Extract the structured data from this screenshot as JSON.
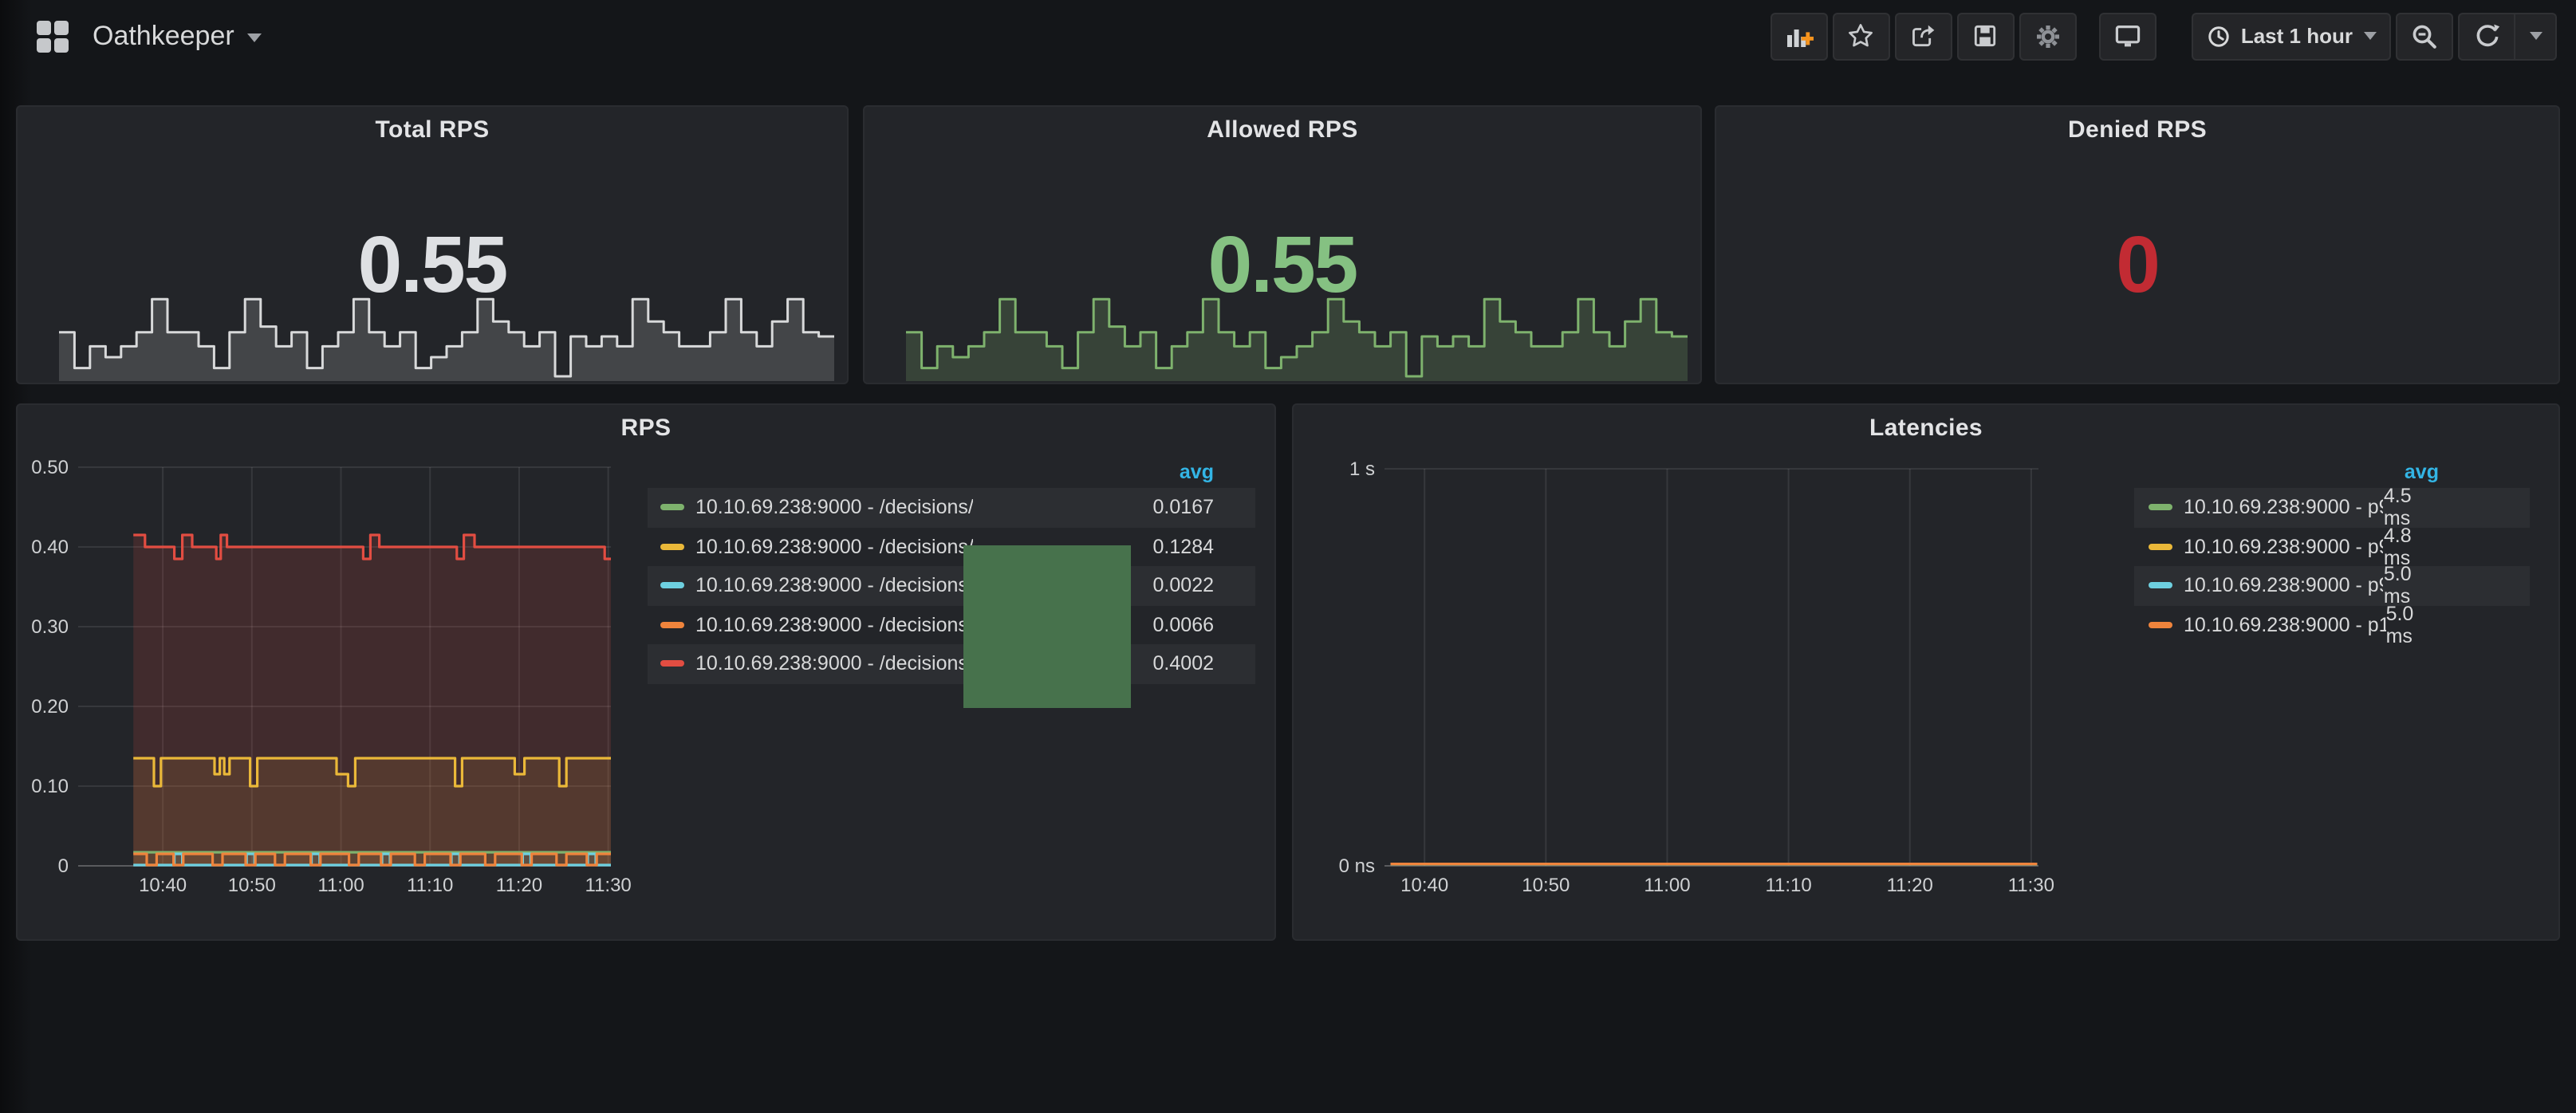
{
  "navbar": {
    "title": "Oathkeeper",
    "time_range": "Last 1 hour",
    "icons": [
      "dashboard-grid",
      "add-panel",
      "star",
      "share",
      "save",
      "settings",
      "tv-kiosk",
      "clock",
      "zoom-out",
      "refresh",
      "caret-down"
    ]
  },
  "stats": [
    {
      "title": "Total RPS",
      "value": "0.55",
      "value_color": "#dee0e3",
      "spark_line": "#d8d9da",
      "spark_fill": "rgba(216,217,218,0.18)",
      "spark": [
        0.55,
        0.12,
        0.38,
        0.25,
        0.38,
        0.55,
        0.95,
        0.55,
        0.55,
        0.38,
        0.12,
        0.55,
        0.95,
        0.62,
        0.38,
        0.55,
        0.12,
        0.38,
        0.55,
        0.95,
        0.55,
        0.38,
        0.55,
        0.12,
        0.25,
        0.38,
        0.55,
        0.95,
        0.68,
        0.55,
        0.38,
        0.55,
        0.02,
        0.5,
        0.38,
        0.5,
        0.38,
        0.95,
        0.68,
        0.55,
        0.38,
        0.38,
        0.55,
        0.95,
        0.55,
        0.38,
        0.68,
        0.95,
        0.55,
        0.5
      ]
    },
    {
      "title": "Allowed RPS",
      "value": "0.55",
      "value_color": "#85c182",
      "spark_line": "#7eb26d",
      "spark_fill": "rgba(126,178,109,0.22)",
      "spark": [
        0.55,
        0.12,
        0.38,
        0.25,
        0.38,
        0.55,
        0.95,
        0.55,
        0.55,
        0.38,
        0.12,
        0.55,
        0.95,
        0.62,
        0.38,
        0.55,
        0.12,
        0.38,
        0.55,
        0.95,
        0.55,
        0.38,
        0.55,
        0.12,
        0.25,
        0.38,
        0.55,
        0.95,
        0.68,
        0.55,
        0.38,
        0.55,
        0.02,
        0.5,
        0.38,
        0.5,
        0.38,
        0.95,
        0.68,
        0.55,
        0.38,
        0.38,
        0.55,
        0.95,
        0.55,
        0.38,
        0.68,
        0.95,
        0.55,
        0.5
      ]
    },
    {
      "title": "Denied RPS",
      "value": "0",
      "value_color": "#c22b33",
      "spark_line": "",
      "spark_fill": "",
      "spark": []
    }
  ],
  "overlay_box": {
    "color": "#47724c"
  },
  "chart_data": [
    {
      "type": "line",
      "title": "RPS",
      "legend_header": "avg",
      "x_units": "minutes after 10:00",
      "x_range": [
        30.5,
        90.3
      ],
      "x_ticks": [
        {
          "t": 40,
          "label": "10:40"
        },
        {
          "t": 50,
          "label": "10:50"
        },
        {
          "t": 60,
          "label": "11:00"
        },
        {
          "t": 70,
          "label": "11:10"
        },
        {
          "t": 80,
          "label": "11:20"
        },
        {
          "t": 90,
          "label": "11:30"
        }
      ],
      "y_max": 0.5,
      "y_ticks": [
        {
          "v": 0,
          "label": "0"
        },
        {
          "v": 0.1,
          "label": "0.10"
        },
        {
          "v": 0.2,
          "label": "0.20"
        },
        {
          "v": 0.3,
          "label": "0.30"
        },
        {
          "v": 0.4,
          "label": "0.40"
        },
        {
          "v": 0.5,
          "label": "0.50"
        }
      ],
      "series": [
        {
          "name": "10.10.69.238:9000 - /decisions/",
          "color": "#7eb26d",
          "avg": "0.0167",
          "fill_opacity": 0.1,
          "points": [
            [
              36.7,
              0.017
            ],
            [
              90.3,
              0.017
            ]
          ]
        },
        {
          "name": "10.10.69.238:9000 - /decisions/",
          "color": "#eab839",
          "avg": "0.1284",
          "fill_opacity": 0.12,
          "points": [
            [
              36.7,
              0.135
            ],
            [
              39,
              0.135
            ],
            [
              39,
              0.1
            ],
            [
              39.8,
              0.1
            ],
            [
              39.8,
              0.135
            ],
            [
              45.8,
              0.135
            ],
            [
              45.8,
              0.115
            ],
            [
              46.4,
              0.115
            ],
            [
              46.4,
              0.135
            ],
            [
              46.9,
              0.135
            ],
            [
              46.9,
              0.115
            ],
            [
              47.5,
              0.115
            ],
            [
              47.5,
              0.135
            ],
            [
              49.8,
              0.135
            ],
            [
              49.8,
              0.1
            ],
            [
              50.6,
              0.1
            ],
            [
              50.6,
              0.135
            ],
            [
              59.5,
              0.135
            ],
            [
              59.5,
              0.115
            ],
            [
              60.8,
              0.115
            ],
            [
              60.8,
              0.1
            ],
            [
              61.6,
              0.1
            ],
            [
              61.6,
              0.135
            ],
            [
              72.8,
              0.135
            ],
            [
              72.8,
              0.1
            ],
            [
              73.6,
              0.1
            ],
            [
              73.6,
              0.135
            ],
            [
              79.5,
              0.135
            ],
            [
              79.5,
              0.115
            ],
            [
              80.6,
              0.115
            ],
            [
              80.6,
              0.135
            ],
            [
              84.5,
              0.135
            ],
            [
              84.5,
              0.1
            ],
            [
              85.3,
              0.1
            ],
            [
              85.3,
              0.135
            ],
            [
              90.3,
              0.135
            ]
          ]
        },
        {
          "name": "10.10.69.238:9000 - /decisions/",
          "color": "#6ed0e0",
          "avg": "0.0022",
          "fill_opacity": 0.1,
          "points": [
            [
              36.7,
              0.001
            ],
            [
              41.3,
              0.001
            ],
            [
              41.3,
              0.015
            ],
            [
              42.2,
              0.015
            ],
            [
              42.2,
              0.001
            ],
            [
              49.4,
              0.001
            ],
            [
              49.4,
              0.015
            ],
            [
              50.3,
              0.015
            ],
            [
              50.3,
              0.001
            ],
            [
              56.7,
              0.001
            ],
            [
              56.7,
              0.015
            ],
            [
              57.6,
              0.015
            ],
            [
              57.6,
              0.001
            ],
            [
              64.6,
              0.001
            ],
            [
              64.6,
              0.015
            ],
            [
              65.5,
              0.015
            ],
            [
              65.5,
              0.001
            ],
            [
              72.4,
              0.001
            ],
            [
              72.4,
              0.015
            ],
            [
              73.3,
              0.015
            ],
            [
              73.3,
              0.001
            ],
            [
              80.4,
              0.001
            ],
            [
              80.4,
              0.015
            ],
            [
              81.3,
              0.015
            ],
            [
              81.3,
              0.001
            ],
            [
              87.7,
              0.001
            ],
            [
              87.7,
              0.015
            ],
            [
              88.6,
              0.015
            ],
            [
              88.6,
              0.001
            ],
            [
              90.3,
              0.001
            ]
          ]
        },
        {
          "name": "10.10.69.238:9000 - /decisions/",
          "color": "#ef843c",
          "avg": "0.0066",
          "fill_opacity": 0.1,
          "points": [
            [
              36.7,
              0.015
            ],
            [
              38.2,
              0.015
            ],
            [
              38.2,
              0.001
            ],
            [
              39.3,
              0.001
            ],
            [
              39.3,
              0.015
            ],
            [
              41.2,
              0.015
            ],
            [
              41.2,
              0.001
            ],
            [
              42.3,
              0.001
            ],
            [
              42.3,
              0.015
            ],
            [
              45.6,
              0.015
            ],
            [
              45.6,
              0.001
            ],
            [
              46.7,
              0.001
            ],
            [
              46.7,
              0.015
            ],
            [
              49.3,
              0.015
            ],
            [
              49.3,
              0.001
            ],
            [
              50.4,
              0.001
            ],
            [
              50.4,
              0.015
            ],
            [
              52.6,
              0.015
            ],
            [
              52.6,
              0.001
            ],
            [
              53.7,
              0.001
            ],
            [
              53.7,
              0.015
            ],
            [
              56.6,
              0.015
            ],
            [
              56.6,
              0.001
            ],
            [
              57.7,
              0.001
            ],
            [
              57.7,
              0.015
            ],
            [
              60.9,
              0.015
            ],
            [
              60.9,
              0.001
            ],
            [
              62.0,
              0.001
            ],
            [
              62.0,
              0.015
            ],
            [
              64.5,
              0.015
            ],
            [
              64.5,
              0.001
            ],
            [
              65.6,
              0.001
            ],
            [
              65.6,
              0.015
            ],
            [
              68.3,
              0.015
            ],
            [
              68.3,
              0.001
            ],
            [
              69.4,
              0.001
            ],
            [
              69.4,
              0.015
            ],
            [
              72.3,
              0.015
            ],
            [
              72.3,
              0.001
            ],
            [
              73.4,
              0.001
            ],
            [
              73.4,
              0.015
            ],
            [
              76.2,
              0.015
            ],
            [
              76.2,
              0.001
            ],
            [
              77.3,
              0.001
            ],
            [
              77.3,
              0.015
            ],
            [
              80.3,
              0.015
            ],
            [
              80.3,
              0.001
            ],
            [
              81.4,
              0.001
            ],
            [
              81.4,
              0.015
            ],
            [
              84.2,
              0.015
            ],
            [
              84.2,
              0.001
            ],
            [
              85.3,
              0.001
            ],
            [
              85.3,
              0.015
            ],
            [
              87.6,
              0.015
            ],
            [
              87.6,
              0.001
            ],
            [
              88.7,
              0.001
            ],
            [
              88.7,
              0.015
            ],
            [
              90.3,
              0.015
            ]
          ]
        },
        {
          "name": "10.10.69.238:9000 - /decisions/",
          "color": "#e24d42",
          "avg": "0.4002",
          "fill_opacity": 0.16,
          "points": [
            [
              36.7,
              0.415
            ],
            [
              38,
              0.415
            ],
            [
              38,
              0.4
            ],
            [
              41.3,
              0.4
            ],
            [
              41.3,
              0.385
            ],
            [
              42.2,
              0.385
            ],
            [
              42.2,
              0.415
            ],
            [
              43.3,
              0.415
            ],
            [
              43.3,
              0.4
            ],
            [
              46,
              0.4
            ],
            [
              46,
              0.385
            ],
            [
              46.5,
              0.385
            ],
            [
              46.5,
              0.415
            ],
            [
              47.2,
              0.415
            ],
            [
              47.2,
              0.4
            ],
            [
              62.5,
              0.4
            ],
            [
              62.5,
              0.385
            ],
            [
              63.3,
              0.385
            ],
            [
              63.3,
              0.415
            ],
            [
              64.3,
              0.415
            ],
            [
              64.3,
              0.4
            ],
            [
              73,
              0.4
            ],
            [
              73,
              0.385
            ],
            [
              73.8,
              0.385
            ],
            [
              73.8,
              0.415
            ],
            [
              75,
              0.415
            ],
            [
              75,
              0.4
            ],
            [
              89.6,
              0.4
            ],
            [
              89.6,
              0.385
            ],
            [
              90.3,
              0.385
            ]
          ]
        }
      ]
    },
    {
      "type": "line",
      "title": "Latencies",
      "legend_header": "avg",
      "x_units": "minutes after 10:00",
      "x_range": [
        36.7,
        90.6
      ],
      "x_ticks": [
        {
          "t": 40,
          "label": "10:40"
        },
        {
          "t": 50,
          "label": "10:50"
        },
        {
          "t": 60,
          "label": "11:00"
        },
        {
          "t": 70,
          "label": "11:10"
        },
        {
          "t": 80,
          "label": "11:20"
        },
        {
          "t": 90,
          "label": "11:30"
        }
      ],
      "y_max": 1,
      "y_ticks": [
        {
          "v": 0,
          "label": "0 ns"
        },
        {
          "v": 1,
          "label": "1 s"
        }
      ],
      "series": [
        {
          "name": "10.10.69.238:9000 - p90",
          "color": "#7eb26d",
          "avg": "4.5 ms",
          "fill_opacity": 0,
          "points": [
            [
              37.2,
              0.004
            ],
            [
              90.5,
              0.004
            ]
          ]
        },
        {
          "name": "10.10.69.238:9000 - p95",
          "color": "#eab839",
          "avg": "4.8 ms",
          "fill_opacity": 0,
          "points": [
            [
              37.2,
              0.0045
            ],
            [
              90.5,
              0.0045
            ]
          ]
        },
        {
          "name": "10.10.69.238:9000 - p99",
          "color": "#6ed0e0",
          "avg": "5.0 ms",
          "fill_opacity": 0,
          "points": [
            [
              37.2,
              0.005
            ],
            [
              90.5,
              0.005
            ]
          ]
        },
        {
          "name": "10.10.69.238:9000 - p100",
          "color": "#ef843c",
          "avg": "5.0 ms",
          "fill_opacity": 0,
          "points": [
            [
              37.2,
              0.005
            ],
            [
              90.5,
              0.005
            ]
          ]
        }
      ]
    }
  ]
}
